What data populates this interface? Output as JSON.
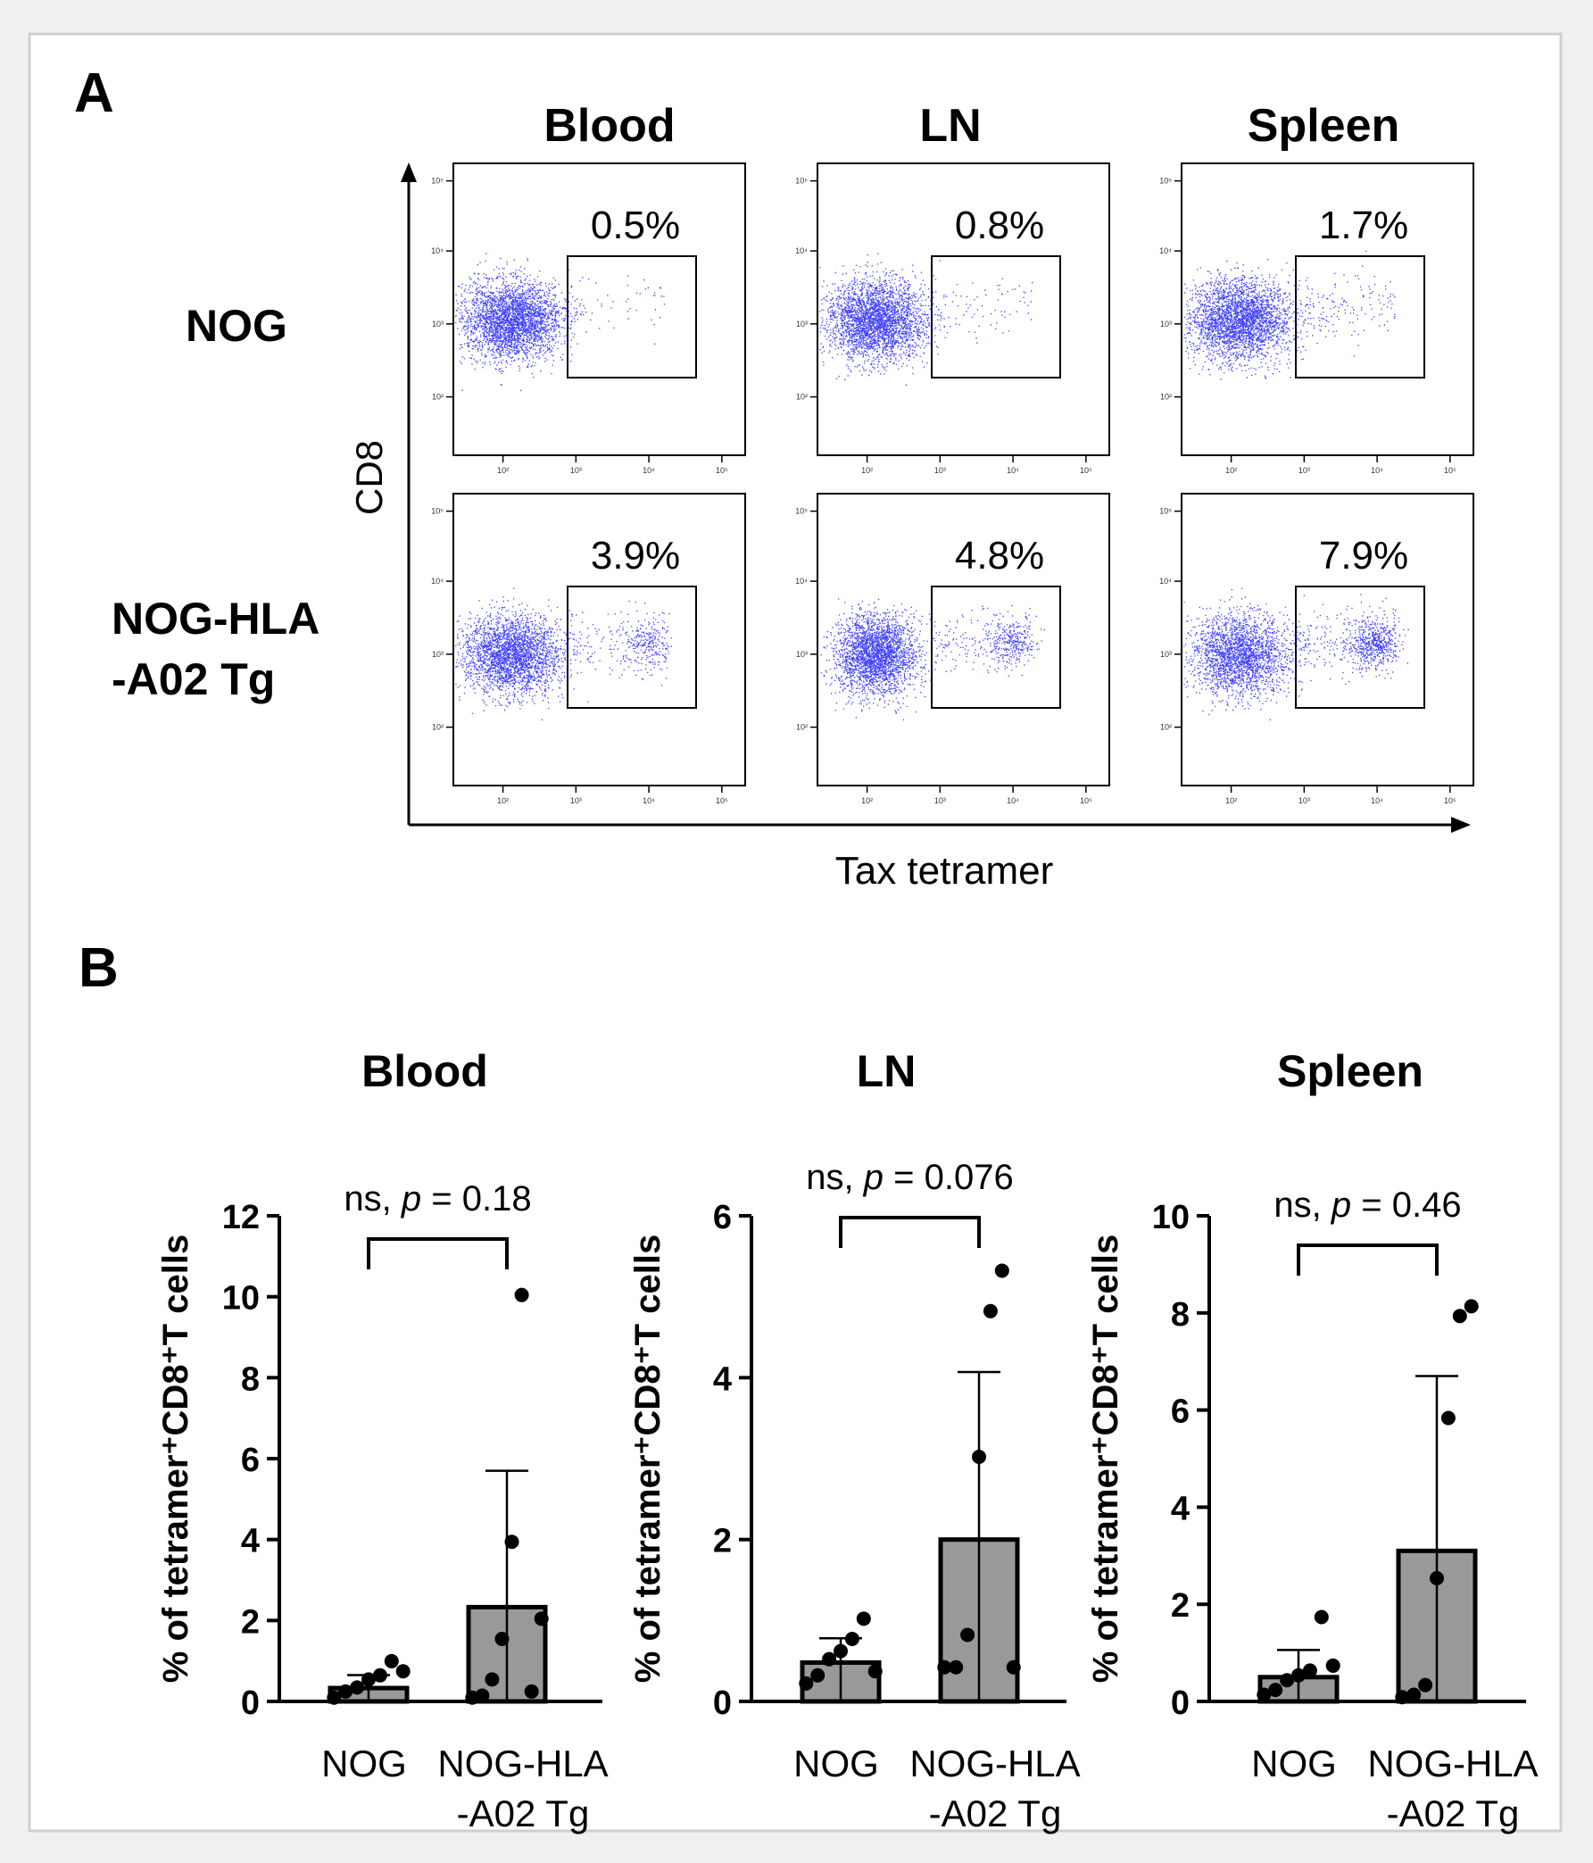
{
  "panel_a": {
    "label": "A",
    "columns": [
      "Blood",
      "LN",
      "Spleen"
    ],
    "rows": [
      "NOG",
      "NOG-HLA\n-A02 Tg"
    ],
    "y_axis_label": "CD8",
    "x_axis_label": "Tax tetramer",
    "gate_percentages": [
      [
        "0.5%",
        "0.8%",
        "1.7%"
      ],
      [
        "3.9%",
        "4.8%",
        "7.9%"
      ]
    ],
    "dot_color": "#1f1fff",
    "y_ticks": [
      "10²",
      "10³",
      "10⁴",
      "10⁵"
    ],
    "x_ticks": [
      "10²",
      "10³",
      "10⁴",
      "10⁵"
    ],
    "gated_fraction": [
      [
        0.005,
        0.008,
        0.017
      ],
      [
        0.039,
        0.048,
        0.079
      ]
    ]
  },
  "panel_b": {
    "label": "B",
    "y_axis_label": "% of tetramer⁺CD8⁺T cells"
  },
  "chart_data": [
    {
      "type": "bar",
      "title": "Blood",
      "categories": [
        "NOG",
        "NOG-HLA\n-A02 Tg"
      ],
      "means": [
        0.33,
        2.33
      ],
      "sd_upper": [
        0.65,
        5.7
      ],
      "points": [
        [
          0.05,
          0.2,
          0.3,
          0.5,
          0.6,
          0.95,
          0.7
        ],
        [
          0.05,
          0.1,
          0.5,
          1.5,
          3.9,
          10.0,
          0.2,
          2.0
        ]
      ],
      "ylabel": "% of tetramer⁺CD8⁺T cells",
      "ylim": [
        0,
        12
      ],
      "yticks": [
        0,
        2,
        4,
        6,
        8,
        10,
        12
      ],
      "significance": "ns, p = 0.18"
    },
    {
      "type": "bar",
      "title": "LN",
      "categories": [
        "NOG",
        "NOG-HLA\n-A02 Tg"
      ],
      "means": [
        0.48,
        2.0
      ],
      "sd_upper": [
        0.78,
        4.07
      ],
      "points": [
        [
          0.2,
          0.3,
          0.5,
          0.6,
          0.75,
          1.0,
          0.35
        ],
        [
          0.4,
          0.4,
          0.8,
          3.0,
          4.8,
          5.3,
          0.4
        ]
      ],
      "ylabel": "% of tetramer⁺CD8⁺T cells",
      "ylim": [
        0,
        6
      ],
      "yticks": [
        0,
        2,
        4,
        6
      ],
      "significance": "ns, p = 0.076"
    },
    {
      "type": "bar",
      "title": "Spleen",
      "categories": [
        "NOG",
        "NOG-HLA\n-A02 Tg"
      ],
      "means": [
        0.5,
        3.1
      ],
      "sd_upper": [
        1.06,
        6.7
      ],
      "points": [
        [
          0.1,
          0.2,
          0.4,
          0.5,
          0.6,
          1.7,
          0.7
        ],
        [
          0.05,
          0.1,
          0.3,
          2.5,
          5.8,
          7.9,
          8.1
        ]
      ],
      "ylabel": "% of tetramer⁺CD8⁺T cells",
      "ylim": [
        0,
        10
      ],
      "yticks": [
        0,
        2,
        4,
        6,
        8,
        10
      ],
      "significance": "ns, p = 0.46"
    }
  ]
}
